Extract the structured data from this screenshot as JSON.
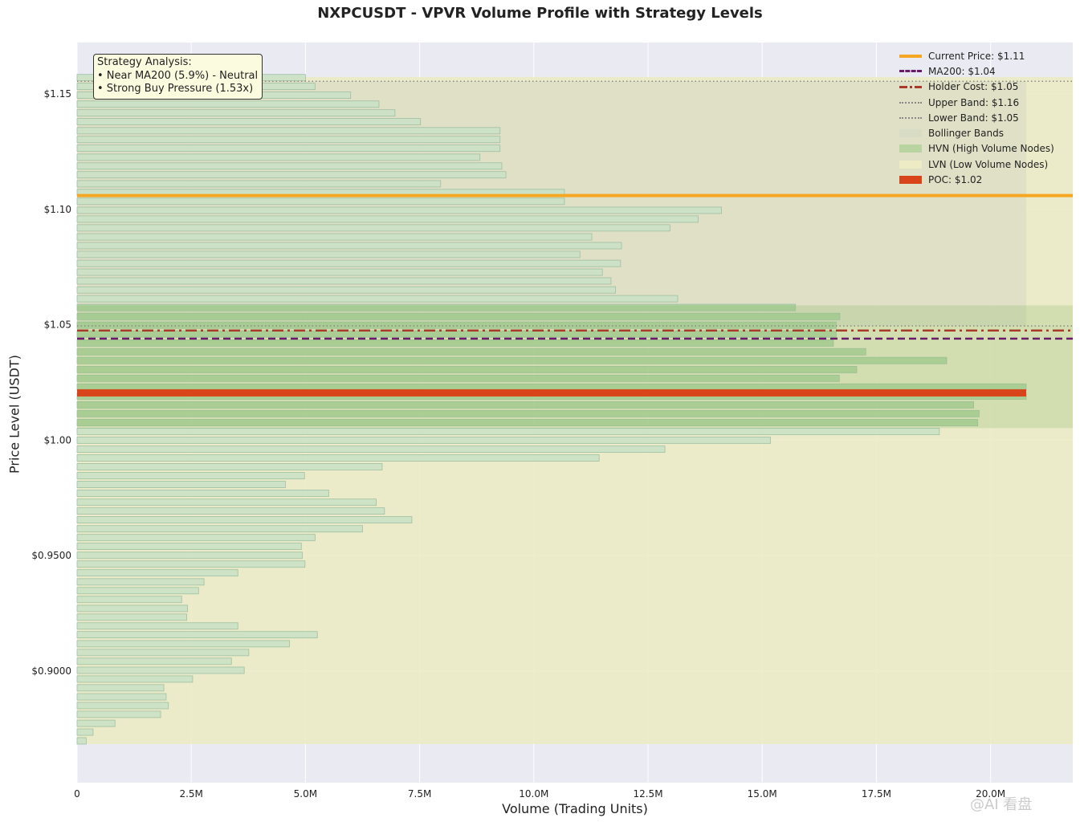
{
  "chart_data": {
    "type": "bar",
    "orientation": "horizontal",
    "title": "NXPCUSDT - VPVR Volume Profile with Strategy Levels",
    "xlabel": "Volume (Trading Units)",
    "ylabel": "Price Level (USDT)",
    "xlim": [
      0,
      21800000
    ],
    "ylim": [
      0.8516,
      1.1723
    ],
    "x_ticks": [
      {
        "value": 0,
        "label": "0"
      },
      {
        "value": 2500000,
        "label": "2.5M"
      },
      {
        "value": 5000000,
        "label": "5.0M"
      },
      {
        "value": 7500000,
        "label": "7.5M"
      },
      {
        "value": 10000000,
        "label": "10.0M"
      },
      {
        "value": 12500000,
        "label": "12.5M"
      },
      {
        "value": 15000000,
        "label": "15.0M"
      },
      {
        "value": 17500000,
        "label": "17.5M"
      },
      {
        "value": 20000000,
        "label": "20.0M"
      }
    ],
    "y_ticks": [
      {
        "value": 0.9,
        "label": "$0.9000"
      },
      {
        "value": 0.95,
        "label": "$0.9500"
      },
      {
        "value": 1.0,
        "label": "$1.00"
      },
      {
        "value": 1.05,
        "label": "$1.05"
      },
      {
        "value": 1.1,
        "label": "$1.10"
      },
      {
        "value": 1.15,
        "label": "$1.15"
      }
    ],
    "bin_height": 0.00325,
    "bins": [
      {
        "price": 0.8697,
        "volume": 200000
      },
      {
        "price": 0.8735,
        "volume": 350000
      },
      {
        "price": 0.8773,
        "volume": 830000
      },
      {
        "price": 0.8812,
        "volume": 1830000
      },
      {
        "price": 0.885,
        "volume": 2000000
      },
      {
        "price": 0.8888,
        "volume": 1950000
      },
      {
        "price": 0.8927,
        "volume": 1900000
      },
      {
        "price": 0.8965,
        "volume": 2530000
      },
      {
        "price": 0.9003,
        "volume": 3660000
      },
      {
        "price": 0.9042,
        "volume": 3380000
      },
      {
        "price": 0.908,
        "volume": 3760000
      },
      {
        "price": 0.9118,
        "volume": 4650000
      },
      {
        "price": 0.9157,
        "volume": 5260000
      },
      {
        "price": 0.9195,
        "volume": 3520000
      },
      {
        "price": 0.9233,
        "volume": 2400000
      },
      {
        "price": 0.9271,
        "volume": 2420000
      },
      {
        "price": 0.931,
        "volume": 2290000
      },
      {
        "price": 0.9348,
        "volume": 2660000
      },
      {
        "price": 0.9386,
        "volume": 2780000
      },
      {
        "price": 0.9425,
        "volume": 3520000
      },
      {
        "price": 0.9463,
        "volume": 4990000
      },
      {
        "price": 0.9501,
        "volume": 4930000
      },
      {
        "price": 0.954,
        "volume": 4910000
      },
      {
        "price": 0.9578,
        "volume": 5210000
      },
      {
        "price": 0.9616,
        "volume": 6250000
      },
      {
        "price": 0.9655,
        "volume": 7330000
      },
      {
        "price": 0.9693,
        "volume": 6730000
      },
      {
        "price": 0.9731,
        "volume": 6550000
      },
      {
        "price": 0.977,
        "volume": 5510000
      },
      {
        "price": 0.9808,
        "volume": 4560000
      },
      {
        "price": 0.9846,
        "volume": 4980000
      },
      {
        "price": 0.9885,
        "volume": 6680000
      },
      {
        "price": 0.9923,
        "volume": 11430000
      },
      {
        "price": 0.9961,
        "volume": 12870000
      },
      {
        "price": 1.0,
        "volume": 15180000
      },
      {
        "price": 1.0038,
        "volume": 18880000
      },
      {
        "price": 1.0076,
        "volume": 19720000
      },
      {
        "price": 1.0115,
        "volume": 19750000
      },
      {
        "price": 1.0153,
        "volume": 19630000
      },
      {
        "price": 1.0191,
        "volume": 20780000
      },
      {
        "price": 1.023,
        "volume": 20780000
      },
      {
        "price": 1.0268,
        "volume": 16690000
      },
      {
        "price": 1.0306,
        "volume": 17070000
      },
      {
        "price": 1.0345,
        "volume": 19040000
      },
      {
        "price": 1.0383,
        "volume": 17270000
      },
      {
        "price": 1.0421,
        "volume": 16560000
      },
      {
        "price": 1.046,
        "volume": 16620000
      },
      {
        "price": 1.0498,
        "volume": 16620000
      },
      {
        "price": 1.0536,
        "volume": 16700000
      },
      {
        "price": 1.0575,
        "volume": 15730000
      },
      {
        "price": 1.0613,
        "volume": 13150000
      },
      {
        "price": 1.0651,
        "volume": 11790000
      },
      {
        "price": 1.069,
        "volume": 11690000
      },
      {
        "price": 1.0728,
        "volume": 11500000
      },
      {
        "price": 1.0766,
        "volume": 11900000
      },
      {
        "price": 1.0805,
        "volume": 11010000
      },
      {
        "price": 1.0843,
        "volume": 11920000
      },
      {
        "price": 1.0881,
        "volume": 11270000
      },
      {
        "price": 1.092,
        "volume": 12980000
      },
      {
        "price": 1.0958,
        "volume": 13600000
      },
      {
        "price": 1.0996,
        "volume": 14110000
      },
      {
        "price": 1.1035,
        "volume": 10670000
      },
      {
        "price": 1.1073,
        "volume": 10670000
      },
      {
        "price": 1.1111,
        "volume": 7960000
      },
      {
        "price": 1.115,
        "volume": 9390000
      },
      {
        "price": 1.1188,
        "volume": 9300000
      },
      {
        "price": 1.1226,
        "volume": 8820000
      },
      {
        "price": 1.1265,
        "volume": 9260000
      },
      {
        "price": 1.1303,
        "volume": 9260000
      },
      {
        "price": 1.1341,
        "volume": 9260000
      },
      {
        "price": 1.138,
        "volume": 7520000
      },
      {
        "price": 1.1418,
        "volume": 6960000
      },
      {
        "price": 1.1456,
        "volume": 6610000
      },
      {
        "price": 1.1495,
        "volume": 5990000
      },
      {
        "price": 1.1533,
        "volume": 5210000
      },
      {
        "price": 1.1571,
        "volume": 5000000
      }
    ],
    "levels": {
      "current_price": {
        "value": 1.106,
        "label": "Current Price: $1.11",
        "color": "#f5a623"
      },
      "ma200": {
        "value": 1.044,
        "label": "MA200: $1.04",
        "color": "#6a1b6a"
      },
      "holder_cost": {
        "value": 1.0475,
        "label": "Holder Cost: $1.05",
        "color": "#a83a2a"
      },
      "upper_band": {
        "value": 1.1555,
        "label": "Upper Band: $1.16",
        "color": "#888888"
      },
      "lower_band": {
        "value": 1.0495,
        "label": "Lower Band: $1.05",
        "color": "#888888"
      },
      "poc": {
        "value": 1.0205,
        "label": "POC: $1.02",
        "color": "#d9451a"
      }
    },
    "bollinger_band_range": [
      1.0495,
      1.1555
    ],
    "hvn_range": [
      1.0052,
      1.0584
    ],
    "lvn_range": [
      0.8683,
      1.1574
    ],
    "legend": {
      "placement": "top-right",
      "entries": [
        {
          "label": "Current Price: $1.11",
          "style": "solid",
          "color": "#f5a623"
        },
        {
          "label": "MA200: $1.04",
          "style": "dashed",
          "color": "#6a1b6a"
        },
        {
          "label": "Holder Cost: $1.05",
          "style": "dashdot",
          "color": "#a83a2a"
        },
        {
          "label": "Upper Band: $1.16",
          "style": "dotted",
          "color": "#888888"
        },
        {
          "label": "Lower Band: $1.05",
          "style": "dotted",
          "color": "#888888"
        },
        {
          "label": "Bollinger Bands",
          "style": "patch",
          "color": "#d9dcc4"
        },
        {
          "label": "HVN (High Volume Nodes)",
          "style": "patch",
          "color": "#b9d4a1"
        },
        {
          "label": "LVN (Low Volume Nodes)",
          "style": "patch",
          "color": "#ecebc4"
        },
        {
          "label": "POC: $1.02",
          "style": "patch",
          "color": "#d9451a"
        }
      ]
    },
    "annotation": "Strategy Analysis:\n• Near MA200 (5.9%) - Neutral\n• Strong Buy Pressure (1.53x)",
    "grid": true,
    "colors": {
      "plot_background": "#eaeaf2",
      "bar_fill": "#c9e0c4",
      "bar_edge": "#9fbfa3",
      "hvn_bar_fill": "#a9cf9c"
    }
  },
  "watermark": "@AI 看盘"
}
